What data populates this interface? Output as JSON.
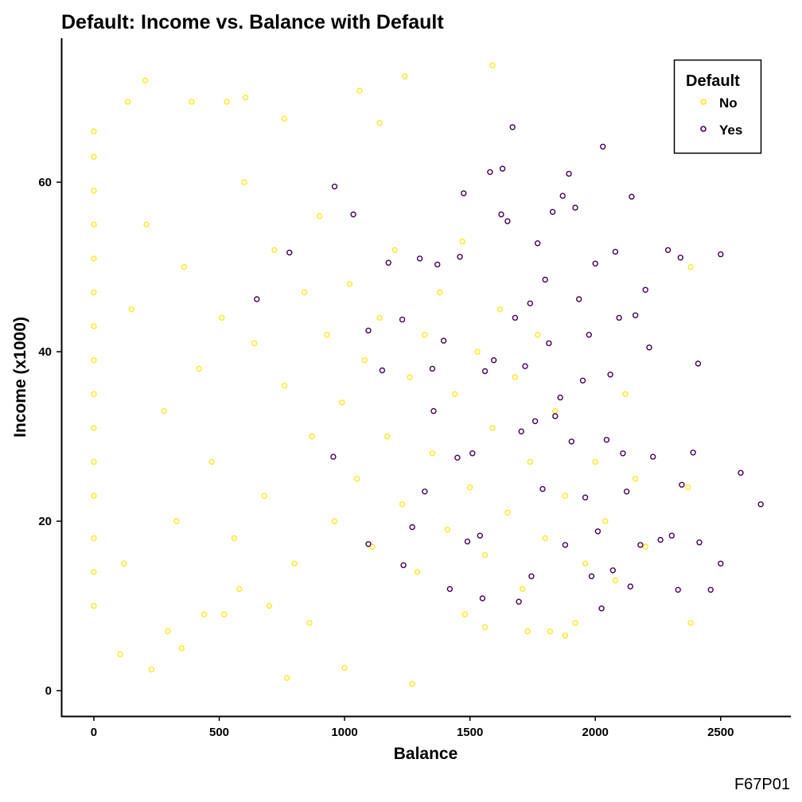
{
  "chart_data": {
    "type": "scatter",
    "title": "Default: Income vs. Balance with Default",
    "xlabel": "Balance",
    "ylabel": "Income (x1000)",
    "xlim": [
      -130,
      2780
    ],
    "ylim": [
      -3,
      77
    ],
    "x_ticks": [
      "0",
      "500",
      "1000",
      "1500",
      "2000",
      "2500"
    ],
    "y_ticks": [
      "0",
      "20",
      "40",
      "60"
    ],
    "grid": false,
    "legend": {
      "title": "Default",
      "placement": "top-right",
      "entries": [
        "No",
        "Yes"
      ]
    },
    "series": [
      {
        "name": "No",
        "color": "#FDE725",
        "marker": "open-circle",
        "points": [
          [
            0,
            10
          ],
          [
            0,
            14
          ],
          [
            0,
            18
          ],
          [
            0,
            23
          ],
          [
            0,
            27
          ],
          [
            0,
            31
          ],
          [
            0,
            35
          ],
          [
            0,
            39
          ],
          [
            0,
            43
          ],
          [
            0,
            47
          ],
          [
            0,
            51
          ],
          [
            0,
            55
          ],
          [
            0,
            59
          ],
          [
            0,
            63
          ],
          [
            0,
            66
          ],
          [
            105,
            4.3
          ],
          [
            230,
            2.5
          ],
          [
            1000,
            2.7
          ],
          [
            1270,
            0.8
          ],
          [
            770,
            1.5
          ],
          [
            295,
            7
          ],
          [
            350,
            5
          ],
          [
            440,
            9
          ],
          [
            580,
            12
          ],
          [
            205,
            72
          ],
          [
            135,
            69.5
          ],
          [
            390,
            69.5
          ],
          [
            530,
            69.5
          ],
          [
            605,
            70
          ],
          [
            1060,
            70.8
          ],
          [
            1140,
            67
          ],
          [
            1590,
            73.8
          ],
          [
            1240,
            72.5
          ],
          [
            760,
            67.5
          ],
          [
            150,
            45
          ],
          [
            210,
            55
          ],
          [
            280,
            33
          ],
          [
            330,
            20
          ],
          [
            360,
            50
          ],
          [
            420,
            38
          ],
          [
            470,
            27
          ],
          [
            510,
            44
          ],
          [
            560,
            18
          ],
          [
            600,
            60
          ],
          [
            640,
            41
          ],
          [
            680,
            23
          ],
          [
            720,
            52
          ],
          [
            760,
            36
          ],
          [
            800,
            15
          ],
          [
            840,
            47
          ],
          [
            870,
            30
          ],
          [
            900,
            56
          ],
          [
            930,
            42
          ],
          [
            960,
            20
          ],
          [
            990,
            34
          ],
          [
            1020,
            48
          ],
          [
            1050,
            25
          ],
          [
            1080,
            39
          ],
          [
            1110,
            17
          ],
          [
            1140,
            44
          ],
          [
            1170,
            30
          ],
          [
            1200,
            52
          ],
          [
            1230,
            22
          ],
          [
            1260,
            37
          ],
          [
            1290,
            14
          ],
          [
            1320,
            42
          ],
          [
            1350,
            28
          ],
          [
            1380,
            47
          ],
          [
            1410,
            19
          ],
          [
            1440,
            35
          ],
          [
            1470,
            53
          ],
          [
            1500,
            24
          ],
          [
            1530,
            40
          ],
          [
            1560,
            16
          ],
          [
            1590,
            31
          ],
          [
            1620,
            45
          ],
          [
            1650,
            21
          ],
          [
            1680,
            37
          ],
          [
            1710,
            12
          ],
          [
            1740,
            27
          ],
          [
            1770,
            42
          ],
          [
            1800,
            18
          ],
          [
            1840,
            33
          ],
          [
            1880,
            23
          ],
          [
            1920,
            8
          ],
          [
            1960,
            15
          ],
          [
            2000,
            27
          ],
          [
            2040,
            20
          ],
          [
            2080,
            13
          ],
          [
            2120,
            35
          ],
          [
            2160,
            25
          ],
          [
            2200,
            17
          ],
          [
            2380,
            8
          ],
          [
            2370,
            24
          ],
          [
            2380,
            50
          ],
          [
            1880,
            6.5
          ],
          [
            1820,
            7
          ],
          [
            1730,
            7
          ],
          [
            1560,
            7.5
          ],
          [
            1480,
            9
          ],
          [
            520,
            9
          ],
          [
            700,
            10
          ],
          [
            860,
            8
          ],
          [
            120,
            15
          ]
        ]
      },
      {
        "name": "Yes",
        "color": "#440154",
        "marker": "open-circle",
        "points": [
          [
            650,
            46.2
          ],
          [
            780,
            51.7
          ],
          [
            955,
            27.6
          ],
          [
            960,
            59.5
          ],
          [
            1035,
            56.2
          ],
          [
            1095,
            42.5
          ],
          [
            1095,
            17.3
          ],
          [
            1150,
            37.8
          ],
          [
            1175,
            50.5
          ],
          [
            1230,
            43.8
          ],
          [
            1235,
            14.8
          ],
          [
            1270,
            19.3
          ],
          [
            1300,
            51
          ],
          [
            1320,
            23.5
          ],
          [
            1350,
            38
          ],
          [
            1355,
            33
          ],
          [
            1370,
            50.3
          ],
          [
            1395,
            41.3
          ],
          [
            1420,
            12
          ],
          [
            1450,
            27.5
          ],
          [
            1460,
            51.2
          ],
          [
            1475,
            58.7
          ],
          [
            1490,
            17.6
          ],
          [
            1510,
            28
          ],
          [
            1540,
            18.3
          ],
          [
            1550,
            10.9
          ],
          [
            1560,
            37.7
          ],
          [
            1580,
            61.2
          ],
          [
            1595,
            39
          ],
          [
            1625,
            56.2
          ],
          [
            1630,
            61.6
          ],
          [
            1650,
            55.4
          ],
          [
            1670,
            66.5
          ],
          [
            1680,
            44
          ],
          [
            1695,
            10.5
          ],
          [
            1705,
            30.6
          ],
          [
            1720,
            38.3
          ],
          [
            1740,
            45.7
          ],
          [
            1745,
            13.5
          ],
          [
            1760,
            31.8
          ],
          [
            1770,
            52.8
          ],
          [
            1790,
            23.8
          ],
          [
            1800,
            48.5
          ],
          [
            1815,
            41
          ],
          [
            1830,
            56.5
          ],
          [
            1840,
            32.4
          ],
          [
            1860,
            34.6
          ],
          [
            1870,
            58.4
          ],
          [
            1880,
            17.2
          ],
          [
            1895,
            61
          ],
          [
            1905,
            29.4
          ],
          [
            1920,
            57
          ],
          [
            1935,
            46.2
          ],
          [
            1950,
            36.6
          ],
          [
            1960,
            22.8
          ],
          [
            1975,
            42
          ],
          [
            1985,
            13.5
          ],
          [
            2000,
            50.4
          ],
          [
            2010,
            18.8
          ],
          [
            2025,
            9.7
          ],
          [
            2030,
            64.2
          ],
          [
            2045,
            29.6
          ],
          [
            2060,
            37.3
          ],
          [
            2070,
            14.2
          ],
          [
            2080,
            51.8
          ],
          [
            2095,
            44
          ],
          [
            2110,
            28
          ],
          [
            2125,
            23.5
          ],
          [
            2140,
            12.3
          ],
          [
            2145,
            58.3
          ],
          [
            2160,
            44.3
          ],
          [
            2180,
            17.2
          ],
          [
            2200,
            47.3
          ],
          [
            2215,
            40.5
          ],
          [
            2230,
            27.6
          ],
          [
            2260,
            17.8
          ],
          [
            2290,
            52
          ],
          [
            2305,
            18.3
          ],
          [
            2330,
            11.9
          ],
          [
            2340,
            51.1
          ],
          [
            2345,
            24.3
          ],
          [
            2390,
            28.1
          ],
          [
            2410,
            38.6
          ],
          [
            2415,
            17.5
          ],
          [
            2460,
            11.9
          ],
          [
            2500,
            51.5
          ],
          [
            2500,
            15
          ],
          [
            2580,
            25.7
          ],
          [
            2660,
            22
          ]
        ]
      }
    ]
  },
  "caption": "F67P01"
}
